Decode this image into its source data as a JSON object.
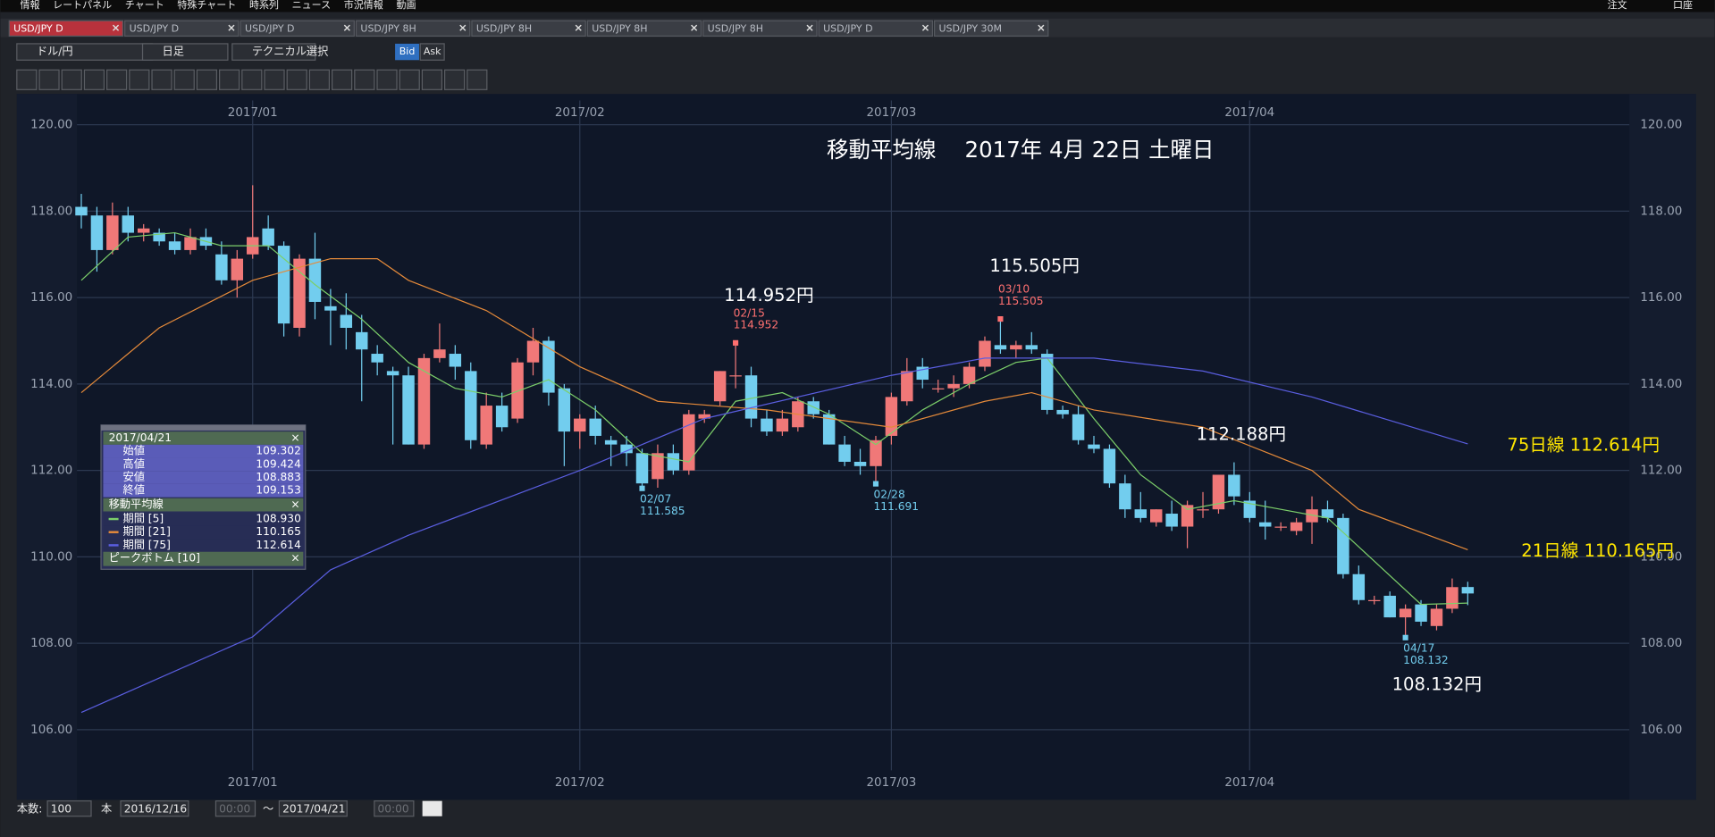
{
  "ui": {
    "menu": [
      "情報",
      "レートパネル",
      "チャート",
      "特殊チャート",
      "時系列",
      "ニュース",
      "市況情報",
      "動画"
    ],
    "menu_right": [
      "注文",
      "口座"
    ],
    "tabs": [
      "USD/JPY D",
      "USD/JPY D",
      "USD/JPY D",
      "USD/JPY 8H",
      "USD/JPY 8H",
      "USD/JPY 8H",
      "USD/JPY 8H",
      "USD/JPY D",
      "USD/JPY 30M"
    ],
    "toolbar": {
      "pair": "ドル/円",
      "period": "日足",
      "technical": "テクニカル選択",
      "bid": "Bid",
      "ask": "Ask"
    },
    "bottom": {
      "count_label": "本数:",
      "count": "100",
      "unit": "本",
      "from_date": "2016/12/16",
      "from_time": "00:00",
      "tilde": "〜",
      "to_date": "2017/04/21",
      "to_time": "00:00"
    },
    "panel": {
      "date": "2017/04/21",
      "close": "×",
      "rows": [
        [
          "始値",
          "109.302"
        ],
        [
          "高値",
          "109.424"
        ],
        [
          "安値",
          "108.883"
        ],
        [
          "終値",
          "109.153"
        ]
      ],
      "ma_title": "移動平均線",
      "ma_values": [
        "108.930",
        "110.165",
        "112.614"
      ],
      "peak": "ピークボトム [10]"
    }
  },
  "chart_data": {
    "type": "candlestick",
    "title": "移動平均線　 2017年 4月 22日 土曜日",
    "up_color": "#f07878",
    "down_color": "#72cdee",
    "xlim": [
      -0.28,
      99.37
    ],
    "ylim": [
      105.06,
      120.56
    ],
    "xticks": [
      {
        "value": 11,
        "label": "2017/01"
      },
      {
        "value": 32,
        "label": "2017/02"
      },
      {
        "value": 52,
        "label": "2017/03"
      },
      {
        "value": 75,
        "label": "2017/04"
      }
    ],
    "yticks": [
      {
        "value": 106,
        "label": "106.00"
      },
      {
        "value": 108,
        "label": "108.00"
      },
      {
        "value": 110,
        "label": "110.00"
      },
      {
        "value": 112,
        "label": "112.00"
      },
      {
        "value": 114,
        "label": "114.00"
      },
      {
        "value": 116,
        "label": "116.00"
      },
      {
        "value": 118,
        "label": "118.00"
      },
      {
        "value": 120,
        "label": "120.00"
      }
    ],
    "grid": true,
    "candles": {
      "open": [
        118.1,
        117.9,
        117.1,
        117.9,
        117.5,
        117.5,
        117.3,
        117.1,
        117.4,
        117.0,
        116.4,
        117.0,
        117.6,
        117.2,
        115.3,
        116.9,
        115.8,
        115.6,
        115.2,
        114.7,
        114.3,
        114.2,
        112.6,
        114.6,
        114.7,
        114.3,
        112.6,
        113.5,
        113.2,
        114.5,
        115.0,
        113.9,
        112.9,
        113.2,
        112.7,
        112.6,
        112.4,
        111.8,
        112.4,
        112.0,
        113.2,
        113.6,
        114.2,
        114.2,
        113.2,
        112.9,
        113.0,
        113.6,
        113.3,
        112.6,
        112.2,
        112.1,
        112.8,
        113.6,
        114.4,
        113.9,
        113.9,
        114.0,
        114.4,
        114.9,
        114.8,
        114.9,
        114.7,
        113.4,
        113.3,
        112.6,
        112.5,
        111.7,
        111.1,
        110.8,
        111.0,
        110.7,
        111.1,
        111.1,
        111.9,
        111.3,
        110.8,
        110.7,
        110.6,
        110.8,
        111.1,
        110.9,
        109.6,
        109.0,
        109.1,
        108.6,
        108.9,
        108.4,
        108.8,
        109.302
      ],
      "high": [
        118.4,
        118.1,
        118.2,
        118.1,
        117.7,
        117.6,
        117.5,
        117.6,
        117.6,
        117.3,
        117.1,
        118.6,
        117.9,
        117.3,
        117.0,
        117.5,
        116.2,
        116.1,
        115.6,
        114.9,
        114.4,
        114.4,
        114.7,
        115.4,
        114.9,
        114.5,
        113.8,
        113.8,
        114.6,
        115.3,
        115.1,
        114.0,
        113.3,
        113.5,
        112.8,
        112.8,
        112.5,
        112.6,
        112.6,
        113.4,
        113.4,
        114.3,
        114.952,
        114.4,
        113.4,
        113.4,
        113.7,
        113.7,
        113.4,
        112.8,
        112.5,
        112.8,
        113.8,
        114.6,
        114.6,
        114.1,
        114.2,
        114.5,
        115.1,
        115.505,
        115.0,
        115.2,
        114.8,
        113.5,
        113.5,
        112.8,
        112.6,
        111.9,
        111.5,
        111.1,
        111.3,
        111.3,
        111.5,
        111.9,
        112.188,
        111.5,
        111.3,
        110.8,
        110.9,
        111.4,
        111.3,
        111.0,
        109.8,
        109.1,
        109.2,
        108.9,
        109.0,
        108.9,
        109.5,
        109.424
      ],
      "low": [
        117.6,
        116.6,
        117.0,
        117.3,
        117.3,
        117.2,
        117.0,
        117.0,
        117.1,
        116.3,
        116.0,
        116.9,
        117.1,
        115.1,
        115.1,
        115.5,
        114.9,
        114.8,
        113.6,
        114.2,
        112.6,
        112.6,
        112.5,
        114.5,
        114.1,
        112.5,
        112.5,
        112.9,
        113.1,
        114.2,
        113.5,
        112.1,
        112.5,
        112.6,
        112.1,
        112.1,
        111.585,
        111.6,
        111.9,
        111.9,
        113.1,
        113.5,
        113.9,
        113.0,
        112.8,
        112.8,
        112.9,
        113.2,
        112.6,
        112.1,
        111.9,
        111.691,
        112.6,
        113.5,
        113.9,
        113.8,
        113.7,
        113.9,
        114.3,
        114.7,
        114.6,
        114.7,
        113.3,
        113.2,
        112.6,
        112.4,
        111.6,
        110.9,
        110.8,
        110.7,
        110.6,
        110.2,
        110.9,
        111.0,
        111.2,
        110.8,
        110.4,
        110.6,
        110.5,
        110.3,
        110.8,
        109.5,
        108.9,
        108.9,
        108.6,
        108.132,
        108.4,
        108.3,
        108.7,
        108.883
      ],
      "close": [
        117.9,
        117.1,
        117.9,
        117.5,
        117.6,
        117.3,
        117.1,
        117.4,
        117.2,
        116.4,
        116.9,
        117.4,
        117.2,
        115.4,
        116.9,
        115.9,
        115.7,
        115.3,
        114.8,
        114.5,
        114.2,
        112.6,
        114.6,
        114.8,
        114.4,
        112.7,
        113.5,
        113.0,
        114.5,
        115.0,
        113.8,
        112.9,
        113.2,
        112.8,
        112.6,
        112.4,
        111.7,
        112.4,
        112.0,
        113.3,
        113.3,
        114.3,
        114.2,
        113.2,
        112.9,
        113.2,
        113.6,
        113.3,
        112.6,
        112.2,
        112.1,
        112.7,
        113.7,
        114.3,
        114.1,
        113.9,
        114.0,
        114.4,
        115.0,
        114.8,
        114.9,
        114.8,
        113.4,
        113.3,
        112.7,
        112.5,
        111.7,
        111.1,
        110.9,
        111.1,
        110.7,
        111.2,
        111.1,
        111.9,
        111.4,
        110.9,
        110.7,
        110.7,
        110.8,
        111.1,
        110.9,
        109.6,
        109.0,
        109.0,
        108.6,
        108.8,
        108.5,
        108.8,
        109.3,
        109.153
      ]
    },
    "series": [
      {
        "name": "期間 [5]",
        "color": "#7ccf6a",
        "x": [
          0,
          3,
          6,
          9,
          12,
          15,
          18,
          21,
          24,
          27,
          30,
          33,
          36,
          39,
          42,
          45,
          48,
          51,
          54,
          57,
          60,
          62,
          65,
          68,
          71,
          74,
          77,
          80,
          83,
          86,
          89
        ],
        "values": [
          116.4,
          117.4,
          117.5,
          117.2,
          117.2,
          116.3,
          115.5,
          114.5,
          113.9,
          113.7,
          114.1,
          113.4,
          112.4,
          112.2,
          113.6,
          113.8,
          113.3,
          112.6,
          113.4,
          114.0,
          114.5,
          114.6,
          113.2,
          111.9,
          111.1,
          111.3,
          111.1,
          110.9,
          109.9,
          108.9,
          108.93
        ]
      },
      {
        "name": "期間 [21]",
        "color": "#e58a3a",
        "x": [
          0,
          5,
          11,
          16,
          19,
          21,
          26,
          32,
          37,
          44,
          52,
          58,
          61,
          65,
          72,
          79,
          82,
          89
        ],
        "values": [
          113.8,
          115.3,
          116.4,
          116.9,
          116.9,
          116.4,
          115.7,
          114.4,
          113.6,
          113.4,
          113.0,
          113.6,
          113.8,
          113.4,
          113.0,
          112.0,
          111.1,
          110.165
        ]
      },
      {
        "name": "期間 [75]",
        "color": "#5a5ee0",
        "x": [
          0,
          11,
          16,
          21,
          32,
          40,
          52,
          58,
          65,
          72,
          79,
          89
        ],
        "values": [
          106.4,
          108.15,
          109.7,
          110.5,
          112.0,
          113.2,
          114.2,
          114.6,
          114.6,
          114.3,
          113.7,
          112.614
        ]
      }
    ],
    "annotations": [
      "114.952円",
      "115.505円",
      "112.188円",
      "108.132円"
    ],
    "ma_labels": [
      "75日線 112.614円",
      "21日線 110.165円"
    ],
    "peak_labels": [
      [
        "02/15",
        "114.952"
      ],
      [
        "03/10",
        "115.505"
      ],
      [
        "02/07",
        "111.585"
      ],
      [
        "02/28",
        "111.691"
      ],
      [
        "04/17",
        "108.132"
      ]
    ]
  }
}
